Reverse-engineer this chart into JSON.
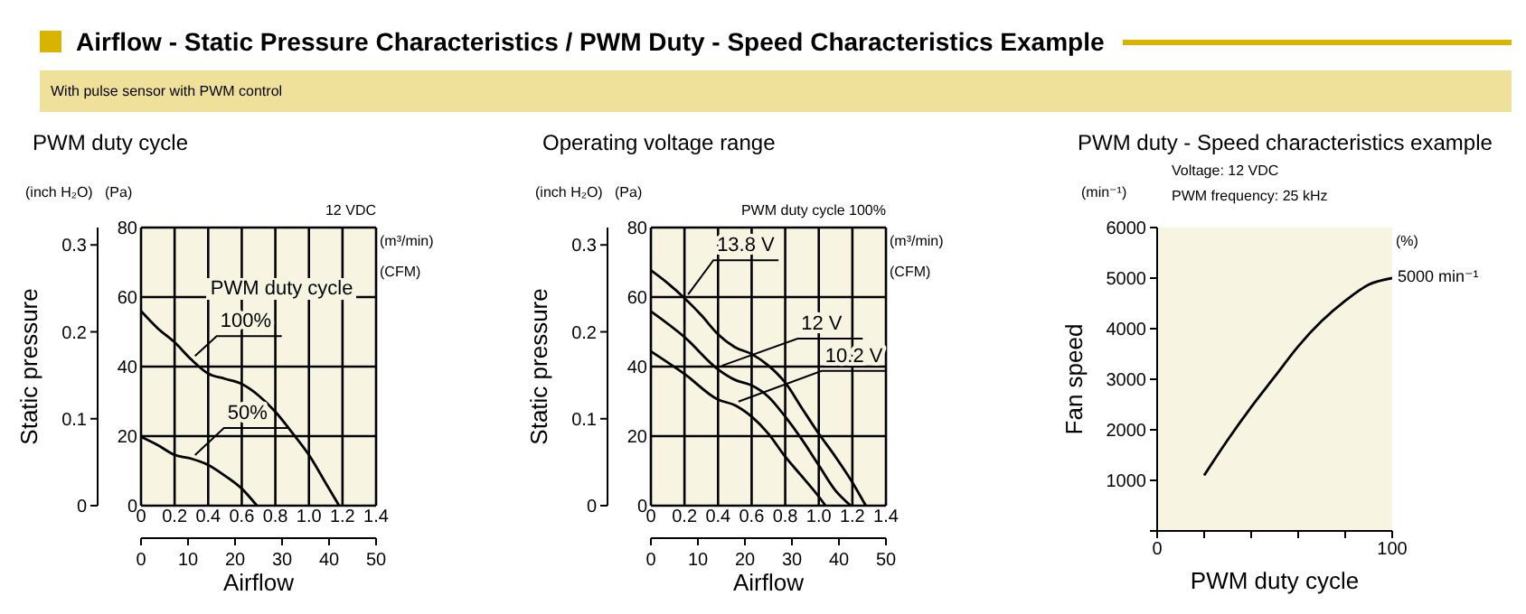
{
  "chart_data": [
    {
      "type": "other",
      "title": "Airflow - Static Pressure Characteristics / PWM Duty - Speed Characteristics Example",
      "subtitle": "With pulse sensor with PWM control"
    },
    {
      "type": "line",
      "title": "PWM duty cycle",
      "xlabel": "Airflow",
      "ylabel": "Static pressure",
      "legend_title": "PWM duty cycle",
      "annotations": [
        "(inch H₂O)",
        "(Pa)",
        "12 VDC",
        "(m³/min)",
        "(CFM)"
      ],
      "xlim": [
        0,
        1.4
      ],
      "xticks": [
        0,
        0.2,
        0.4,
        0.6,
        0.8,
        {
          "value": 1,
          "label": "1.0"
        },
        1.2,
        1.4
      ],
      "x2lim": [
        0,
        50
      ],
      "x2ticks": [
        0,
        10,
        20,
        30,
        40,
        50
      ],
      "ylim": [
        0,
        0.32
      ],
      "yticks": [
        0,
        0.1,
        0.2,
        0.3
      ],
      "y2lim": [
        0,
        80
      ],
      "y2ticks": [
        0,
        20,
        40,
        60,
        80
      ],
      "grid": true,
      "legend": false,
      "marker": "none",
      "line_style": "solid",
      "series": [
        {
          "name": "100%",
          "color": "#000000",
          "axis": "y2",
          "x": [
            0,
            0.1,
            0.2,
            0.3,
            0.4,
            0.5,
            0.6,
            0.7,
            0.8,
            0.9,
            1,
            1.1,
            1.18
          ],
          "values": [
            56,
            51,
            47,
            42,
            38,
            36.5,
            35,
            31.7,
            27,
            21,
            14.6,
            6.5,
            0
          ]
        },
        {
          "name": "50%",
          "color": "#000000",
          "axis": "y2",
          "x": [
            0,
            0.1,
            0.2,
            0.3,
            0.4,
            0.5,
            0.6,
            0.69
          ],
          "values": [
            19.8,
            17.4,
            14.6,
            13.5,
            11.7,
            8.6,
            4.9,
            0
          ]
        }
      ]
    },
    {
      "type": "line",
      "title": "Operating voltage range",
      "xlabel": "Airflow",
      "ylabel": "Static pressure",
      "annotations": [
        "(inch H₂O)",
        "(Pa)",
        "PWM duty cycle 100%",
        "(m³/min)",
        "(CFM)"
      ],
      "xlim": [
        0,
        1.4
      ],
      "xticks": [
        0,
        0.2,
        0.4,
        0.6,
        0.8,
        {
          "value": 1,
          "label": "1.0"
        },
        1.2,
        1.4
      ],
      "x2lim": [
        0,
        50
      ],
      "x2ticks": [
        0,
        10,
        20,
        30,
        40,
        50
      ],
      "ylim": [
        0,
        0.32
      ],
      "yticks": [
        0,
        0.1,
        0.2,
        0.3
      ],
      "y2lim": [
        0,
        80
      ],
      "y2ticks": [
        0,
        20,
        40,
        60,
        80
      ],
      "grid": true,
      "legend": false,
      "marker": "none",
      "line_style": "solid",
      "series": [
        {
          "name": "13.8 V",
          "color": "#000000",
          "axis": "y2",
          "x": [
            0,
            0.1,
            0.2,
            0.3,
            0.4,
            0.5,
            0.6,
            0.7,
            0.8,
            0.9,
            1,
            1.1,
            1.2,
            1.28
          ],
          "values": [
            67.7,
            64,
            59.7,
            54.8,
            49.3,
            45.6,
            43.6,
            40.3,
            35.4,
            28,
            20.7,
            14,
            6.7,
            0
          ]
        },
        {
          "name": "12 V",
          "color": "#000000",
          "axis": "y2",
          "x": [
            0,
            0.2,
            0.4,
            0.5,
            0.6,
            0.7,
            0.8,
            0.9,
            1,
            1.1,
            1.19
          ],
          "values": [
            55.9,
            48.5,
            39.2,
            36.2,
            34.6,
            31.3,
            25.6,
            19,
            11.6,
            4.3,
            0
          ]
        },
        {
          "name": "10.2 V",
          "color": "#000000",
          "axis": "y2",
          "x": [
            0,
            0.2,
            0.4,
            0.5,
            0.6,
            0.7,
            0.8,
            0.9,
            1,
            1.04
          ],
          "values": [
            44.4,
            37.9,
            30.5,
            28.9,
            25.6,
            20.7,
            14.1,
            8.4,
            2.6,
            0
          ]
        }
      ]
    },
    {
      "type": "line",
      "title": "PWM duty - Speed characteristics example",
      "xlabel": "PWM duty cycle",
      "ylabel": "Fan speed",
      "annotations": [
        "(min⁻¹)",
        "Voltage: 12 VDC",
        "PWM frequency: 25 kHz",
        "(%)",
        {
          "text": "5000 min⁻¹",
          "x": 100,
          "y": 5000
        }
      ],
      "xlim": [
        0,
        100
      ],
      "xticks": [
        0,
        {
          "value": 20,
          "label": null
        },
        {
          "value": 40,
          "label": null
        },
        {
          "value": 60,
          "label": null
        },
        {
          "value": 80,
          "label": null
        },
        100
      ],
      "ylim": [
        0,
        6000
      ],
      "yticks": [
        {
          "value": 0,
          "label": null
        },
        1000,
        2000,
        3000,
        4000,
        5000,
        6000
      ],
      "grid": false,
      "legend": false,
      "marker": "none",
      "line_style": "solid",
      "series": [
        {
          "color": "#000000",
          "x": [
            20,
            30,
            40,
            50,
            60,
            70,
            80,
            90,
            100
          ],
          "values": [
            1100,
            1800,
            2450,
            3050,
            3650,
            4150,
            4550,
            4870,
            5000
          ]
        }
      ]
    }
  ]
}
